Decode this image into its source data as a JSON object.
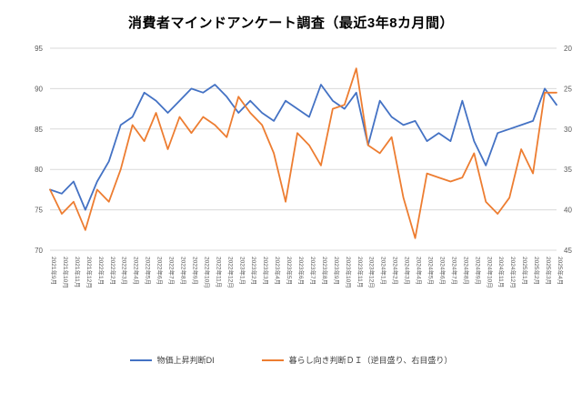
{
  "title": "消費者マインドアンケート調査（最近3年8カ月間）",
  "chart_data": {
    "type": "line",
    "title": "消費者マインドアンケート調査（最近3年8カ月間）",
    "grid": true,
    "legend_position": "bottom",
    "categories": [
      "2021年9月",
      "2021年10月",
      "2021年11月",
      "2021年12月",
      "2022年1月",
      "2022年2月",
      "2022年3月",
      "2022年4月",
      "2022年5月",
      "2022年6月",
      "2022年7月",
      "2022年8月",
      "2022年9月",
      "2022年10月",
      "2022年11月",
      "2022年12月",
      "2023年1月",
      "2023年2月",
      "2023年3月",
      "2023年4月",
      "2023年5月",
      "2023年6月",
      "2023年7月",
      "2023年8月",
      "2023年9月",
      "2023年10月",
      "2023年11月",
      "2023年12月",
      "2024年1月",
      "2024年2月",
      "2024年3月",
      "2024年4月",
      "2024年5月",
      "2024年6月",
      "2024年7月",
      "2024年8月",
      "2024年9月",
      "2024年10月",
      "2024年11月",
      "2024年12月",
      "2025年1月",
      "2025年2月",
      "2025年3月",
      "2025年4月"
    ],
    "left_axis": {
      "min": 70,
      "max": 95,
      "step": 5,
      "labels": [
        "95",
        "90",
        "85",
        "80",
        "75",
        "70"
      ]
    },
    "right_axis": {
      "min": 20,
      "max": 45,
      "step": 5,
      "inverted": true,
      "labels": [
        "20",
        "25",
        "30",
        "35",
        "40",
        "45"
      ]
    },
    "series": [
      {
        "name": "物価上昇判断DI",
        "color": "#4472C4",
        "axis": "left",
        "values": [
          77.5,
          77,
          78.5,
          75,
          78.5,
          81,
          85.5,
          86.5,
          89.5,
          88.5,
          87,
          88.5,
          90,
          89.5,
          90.5,
          89,
          87,
          88.5,
          87,
          86,
          88.5,
          87.5,
          86.5,
          90.5,
          88.5,
          87.5,
          89.5,
          83,
          88.5,
          86.5,
          85.5,
          86,
          83.5,
          84.5,
          83.5,
          88.5,
          83.5,
          80.5,
          84.5,
          85,
          85.5,
          86,
          90,
          88
        ]
      },
      {
        "name": "暮らし向き判断ＤＩ（逆目盛り、右目盛り）",
        "color": "#ED7D31",
        "axis": "right",
        "values": [
          37.5,
          40.5,
          39,
          42.5,
          37.5,
          39,
          35,
          29.5,
          31.5,
          28,
          32.5,
          28.5,
          30.5,
          28.5,
          29.5,
          31,
          26,
          28,
          29.5,
          33,
          39,
          30.5,
          32,
          34.5,
          27.5,
          27,
          22.5,
          32,
          33,
          31,
          38.5,
          43.5,
          35.5,
          36,
          36.5,
          36,
          33,
          39,
          40.5,
          38.5,
          32.5,
          35.5,
          25.5,
          25.5
        ]
      }
    ]
  }
}
